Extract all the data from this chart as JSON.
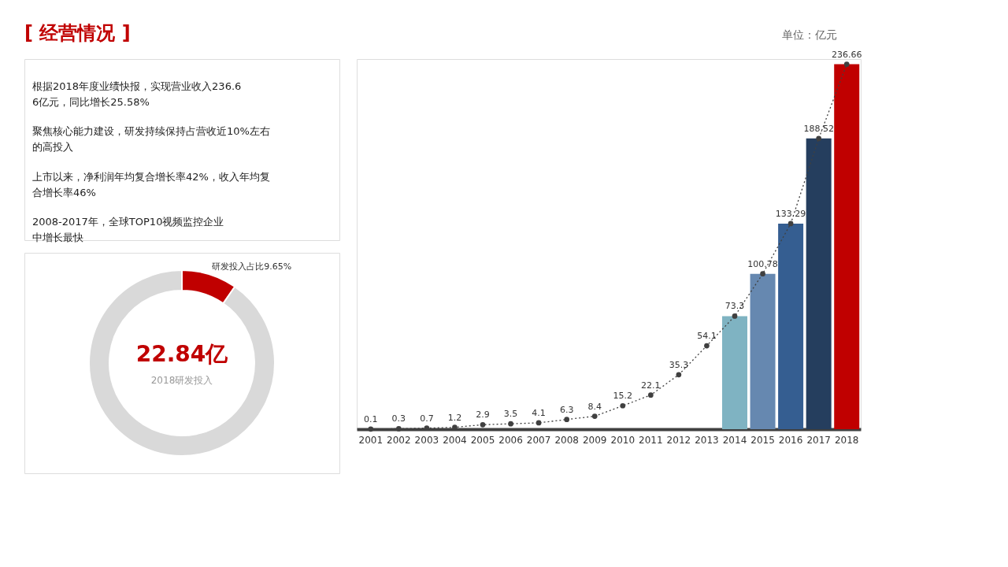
{
  "chart_data": [
    {
      "type": "other",
      "title": "[ 经营情况 ]",
      "annotations": [
        "根据2018年度业绩快报，实现营业收入236.66亿元，同比增长25.58%",
        "聚焦核心能力建设，研发持续保持占营收近10%左右的高投入",
        "上市以来，净利润年均复合增长率42%，收入年均复合增长率46%",
        "2008-2017年，全球TOP10视频监控企业中增长最快"
      ]
    },
    {
      "type": "donut",
      "categories": [
        "研发投入占比9.65%",
        null
      ],
      "values": [
        9.65,
        90.35
      ],
      "colors": [
        "#c00000",
        "#d9d9d9"
      ],
      "annotations": [
        "22.84亿",
        "2018研发投入"
      ]
    },
    {
      "type": "bar",
      "categories": [
        "2001",
        "2002",
        "2003",
        "2004",
        "2005",
        "2006",
        "2007",
        "2008",
        "2009",
        "2010",
        "2011",
        "2012",
        "2013",
        "2014",
        "2015",
        "2016",
        "2017",
        "2018"
      ],
      "series": [
        {
          "type": "bar",
          "values": [
            null,
            null,
            null,
            null,
            null,
            null,
            null,
            null,
            null,
            null,
            null,
            null,
            null,
            73.3,
            100.78,
            133.29,
            188.52,
            236.66
          ],
          "colors": [
            null,
            null,
            null,
            null,
            null,
            null,
            null,
            null,
            null,
            null,
            null,
            null,
            null,
            "#7fb3c2",
            "#6688b0",
            "#355e91",
            "#253e5e",
            "#c00000"
          ]
        },
        {
          "type": "line",
          "color": "#404040",
          "values": [
            0.1,
            0.3,
            0.7,
            1.2,
            2.9,
            3.5,
            4.1,
            6.3,
            8.4,
            15.2,
            22.1,
            35.3,
            54.1,
            73.3,
            100.78,
            133.29,
            188.52,
            236.66
          ],
          "value_labels": [
            "0.1",
            "0.3",
            "0.7",
            "1.2",
            "2.9",
            "3.5",
            "4.1",
            "6.3",
            "8.4",
            "15.2",
            "22.1",
            "35.3",
            "54.1",
            "73.3",
            "100.78",
            "133.29",
            "188.52",
            "236.66"
          ]
        }
      ],
      "line_style": "dotted",
      "marker": "circle",
      "grid": false,
      "annotations": [
        "单位：亿元"
      ]
    }
  ]
}
